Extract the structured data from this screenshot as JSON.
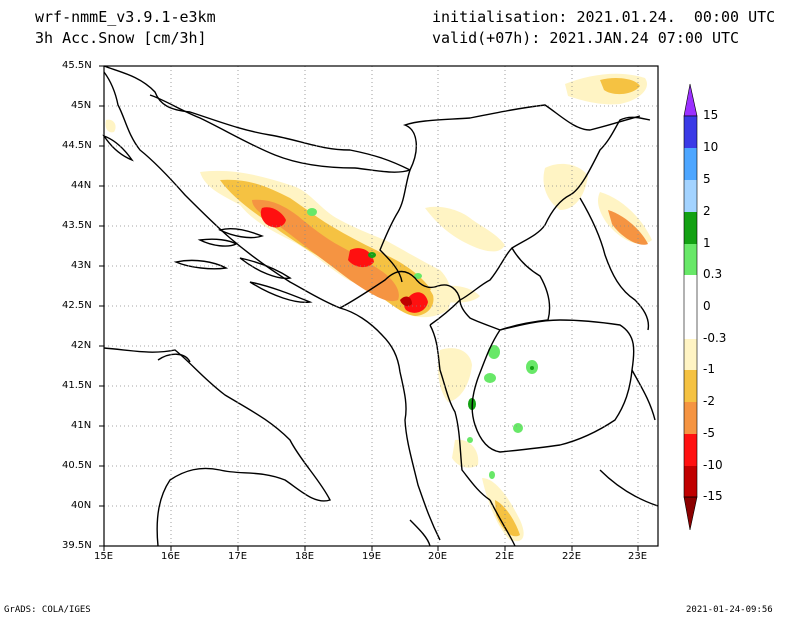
{
  "header": {
    "model": "wrf-nmmE_v3.9.1-e3km",
    "variable": "3h Acc.Snow [cm/3h]",
    "init": "initialisation: 2021.01.24.  00:00 UTC",
    "valid": "valid(+07h): 2021.JAN.24 07:00 UTC"
  },
  "map": {
    "lon_range": [
      15,
      23.3
    ],
    "lat_range": [
      39.5,
      45.5
    ],
    "lon_ticks": [
      "15E",
      "16E",
      "17E",
      "18E",
      "19E",
      "20E",
      "21E",
      "22E",
      "23E"
    ],
    "lat_ticks": [
      "39.5N",
      "40N",
      "40.5N",
      "41N",
      "41.5N",
      "42N",
      "42.5N",
      "43N",
      "43.5N",
      "44N",
      "44.5N",
      "45N",
      "45.5N"
    ],
    "grid": "dotted",
    "features": [
      "Adriatic coastline",
      "national borders",
      "Balkan peninsula"
    ]
  },
  "colorbar": {
    "labels": [
      "15",
      "10",
      "5",
      "2",
      "1",
      "0.3",
      "0",
      "-0.3",
      "-1",
      "-2",
      "-5",
      "-10",
      "-15"
    ],
    "colors": [
      "#9b30ff",
      "#3a3ae6",
      "#4da6ff",
      "#a3d3ff",
      "#13a113",
      "#68e868",
      "#ffffff",
      "#ffffff",
      "#fff4c4",
      "#f5c242",
      "#f59442",
      "#ff1010",
      "#c00000",
      "#8b0000"
    ]
  },
  "footer": {
    "left": "GrADS: COLA/IGES",
    "right": "2021-01-24-09:56"
  }
}
